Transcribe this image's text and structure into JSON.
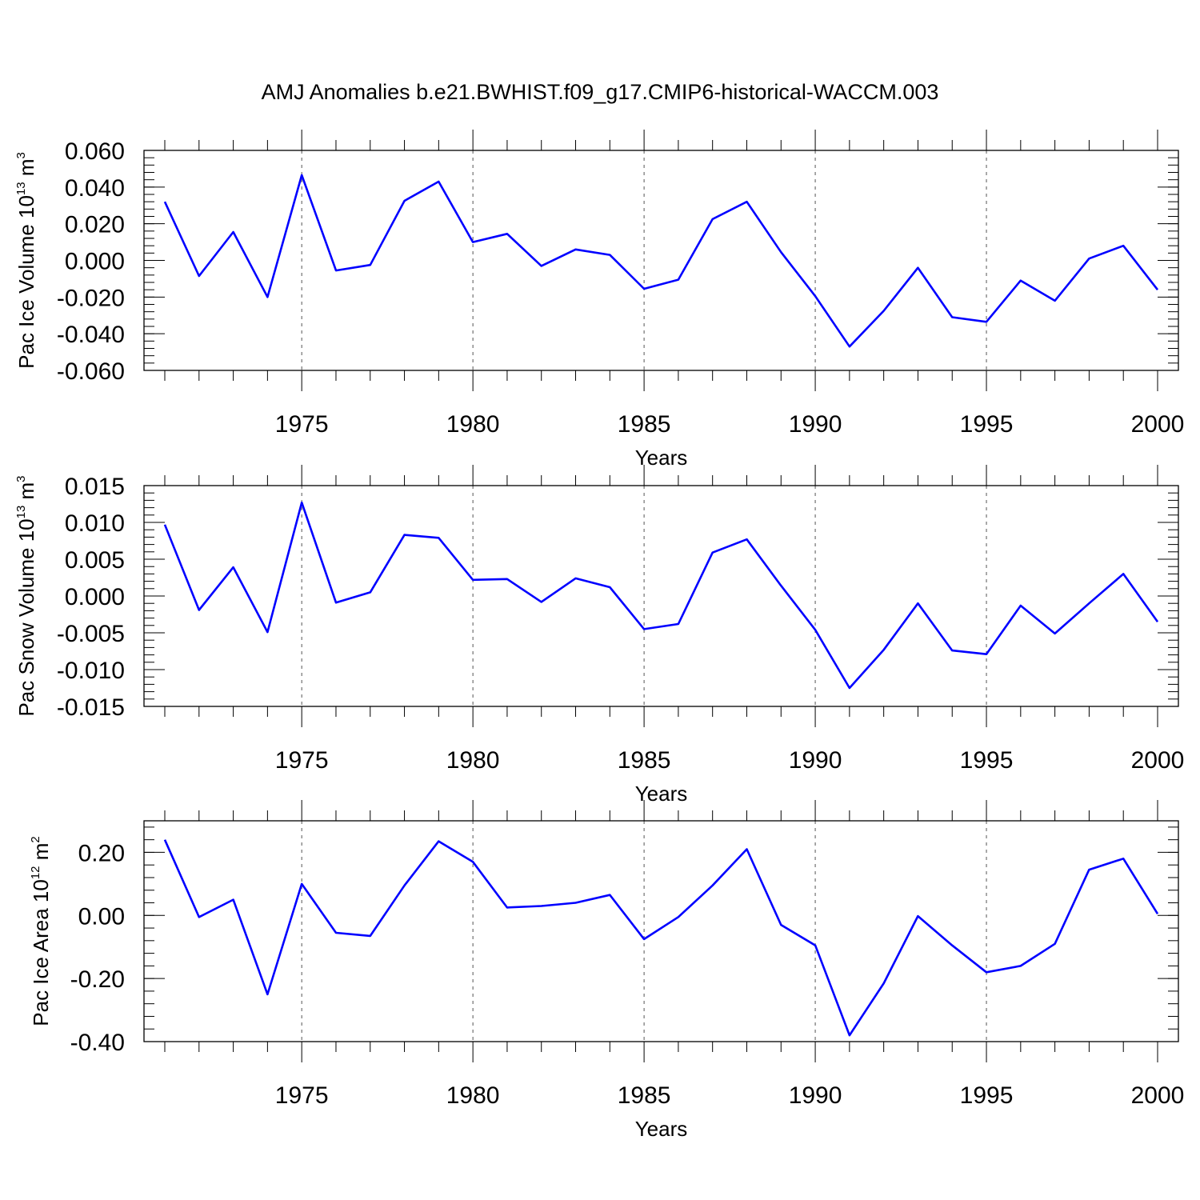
{
  "figure": {
    "title": "AMJ Anomalies b.e21.BWHIST.f09_g17.CMIP6-historical-WACCM.003",
    "line_color": "#0000ff"
  },
  "chart_data": [
    {
      "type": "line",
      "ylabel": {
        "prefix": "Pac Ice Volume 10",
        "exp": "13",
        "unit": " m",
        "unit_exp": "3"
      },
      "xlabel": "Years",
      "xlim": [
        1971,
        2000
      ],
      "ylim": [
        -0.06,
        0.06
      ],
      "xticks": [
        1975,
        1980,
        1985,
        1990,
        1995,
        2000
      ],
      "yticks": [
        0.06,
        0.04,
        0.02,
        0.0,
        -0.02,
        -0.04,
        -0.06
      ],
      "ytick_labels": [
        "0.060",
        "0.040",
        "0.020",
        "0.000",
        "-0.020",
        "-0.040",
        "-0.060"
      ],
      "grid": "dashed vertical at major x ticks",
      "x": [
        1971,
        1972,
        1973,
        1974,
        1975,
        1976,
        1977,
        1978,
        1979,
        1980,
        1981,
        1982,
        1983,
        1984,
        1985,
        1986,
        1987,
        1988,
        1989,
        1990,
        1991,
        1992,
        1993,
        1994,
        1995,
        1996,
        1997,
        1998,
        1999,
        2000
      ],
      "y": [
        0.032,
        -0.0085,
        0.0155,
        -0.02,
        0.0465,
        -0.0055,
        -0.0025,
        0.0325,
        0.043,
        0.01,
        0.0145,
        -0.003,
        0.006,
        0.003,
        -0.0155,
        -0.0105,
        0.0225,
        0.032,
        0.0045,
        -0.0195,
        -0.047,
        -0.0275,
        -0.004,
        -0.031,
        -0.0335,
        -0.011,
        -0.022,
        0.001,
        0.008,
        -0.016
      ]
    },
    {
      "type": "line",
      "ylabel": {
        "prefix": "Pac Snow Volume 10",
        "exp": "13",
        "unit": " m",
        "unit_exp": "3"
      },
      "xlabel": "Years",
      "xlim": [
        1971,
        2000
      ],
      "ylim": [
        -0.015,
        0.015
      ],
      "xticks": [
        1975,
        1980,
        1985,
        1990,
        1995,
        2000
      ],
      "yticks": [
        0.015,
        0.01,
        0.005,
        0.0,
        -0.005,
        -0.01,
        -0.015
      ],
      "ytick_labels": [
        "0.015",
        "0.010",
        "0.005",
        "0.000",
        "-0.005",
        "-0.010",
        "-0.015"
      ],
      "grid": "dashed vertical at major x ticks",
      "x": [
        1971,
        1972,
        1973,
        1974,
        1975,
        1976,
        1977,
        1978,
        1979,
        1980,
        1981,
        1982,
        1983,
        1984,
        1985,
        1986,
        1987,
        1988,
        1989,
        1990,
        1991,
        1992,
        1993,
        1994,
        1995,
        1996,
        1997,
        1998,
        1999,
        2000
      ],
      "y": [
        0.0097,
        -0.0019,
        0.0039,
        -0.0049,
        0.0127,
        -0.0009,
        0.0005,
        0.0083,
        0.0079,
        0.0022,
        0.0023,
        -0.0008,
        0.0024,
        0.0012,
        -0.0045,
        -0.0038,
        0.0059,
        0.0077,
        0.0014,
        -0.0046,
        -0.0125,
        -0.0073,
        -0.001,
        -0.0074,
        -0.0079,
        -0.0013,
        -0.0051,
        -0.001,
        0.003,
        -0.0035
      ]
    },
    {
      "type": "line",
      "ylabel": {
        "prefix": "Pac Ice Area 10",
        "exp": "12",
        "unit": " m",
        "unit_exp": "2"
      },
      "xlabel": "Years",
      "xlim": [
        1971,
        2000
      ],
      "ylim": [
        -0.4,
        0.3
      ],
      "xticks": [
        1975,
        1980,
        1985,
        1990,
        1995,
        2000
      ],
      "yticks": [
        0.2,
        0.0,
        -0.2,
        -0.4
      ],
      "ytick_labels": [
        "0.20",
        "0.00",
        "-0.20",
        "-0.40"
      ],
      "grid": "dashed vertical at major x ticks",
      "x": [
        1971,
        1972,
        1973,
        1974,
        1975,
        1976,
        1977,
        1978,
        1979,
        1980,
        1981,
        1982,
        1983,
        1984,
        1985,
        1986,
        1987,
        1988,
        1989,
        1990,
        1991,
        1992,
        1993,
        1994,
        1995,
        1996,
        1997,
        1998,
        1999,
        2000
      ],
      "y": [
        0.24,
        -0.005,
        0.05,
        -0.25,
        0.1,
        -0.055,
        -0.065,
        0.095,
        0.235,
        0.17,
        0.025,
        0.03,
        0.04,
        0.065,
        -0.075,
        -0.005,
        0.095,
        0.21,
        -0.03,
        -0.095,
        -0.38,
        -0.215,
        -0.002,
        -0.095,
        -0.18,
        -0.16,
        -0.09,
        0.145,
        0.18,
        0.005
      ]
    }
  ]
}
